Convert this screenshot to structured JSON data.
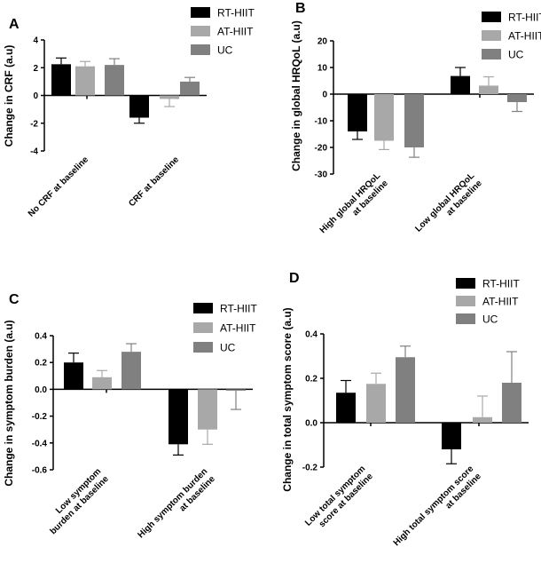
{
  "colors": {
    "RT-HIIT": "#000000",
    "AT-HIIT": "#a8a8a8",
    "UC": "#808080"
  },
  "chart_data": [
    {
      "panel": "A",
      "type": "bar",
      "ylabel": "Change in CRF (a.u)",
      "ylim": [
        -4,
        4
      ],
      "yticks": [
        -4,
        -2,
        0,
        2,
        4
      ],
      "ytick_labels": [
        "-4",
        "-2",
        "0",
        "2",
        "4"
      ],
      "categories": [
        "No CRF at baseline",
        "CRF at baseline"
      ],
      "category_lines": [
        [
          "No CRF at baseline"
        ],
        [
          "CRF at baseline"
        ]
      ],
      "legend": "top-right",
      "series": [
        {
          "name": "RT-HIIT",
          "values": [
            2.25,
            -1.6
          ],
          "errors": [
            0.45,
            0.4
          ]
        },
        {
          "name": "AT-HIIT",
          "values": [
            2.1,
            -0.25
          ],
          "errors": [
            0.35,
            0.55
          ]
        },
        {
          "name": "UC",
          "values": [
            2.2,
            1.0
          ],
          "errors": [
            0.45,
            0.3
          ]
        }
      ]
    },
    {
      "panel": "B",
      "type": "bar",
      "ylabel": "Change in global HRQoL (a.u)",
      "ylim": [
        -30,
        20
      ],
      "yticks": [
        -30,
        -20,
        -10,
        0,
        10,
        20
      ],
      "ytick_labels": [
        "-30",
        "-20",
        "-10",
        "0",
        "10",
        "20"
      ],
      "categories": [
        "High global HRQoL at baseline",
        "Low global HRQoL at baseline"
      ],
      "category_lines": [
        [
          "High global HRQoL",
          "at baseline"
        ],
        [
          "Low global HRQoL",
          "at baseline"
        ]
      ],
      "legend": "top-right",
      "series": [
        {
          "name": "RT-HIIT",
          "values": [
            -14,
            6.8
          ],
          "errors": [
            3.0,
            3.2
          ]
        },
        {
          "name": "AT-HIIT",
          "values": [
            -17.5,
            3.2
          ],
          "errors": [
            3.3,
            3.3
          ]
        },
        {
          "name": "UC",
          "values": [
            -20,
            -3
          ],
          "errors": [
            3.7,
            3.5
          ]
        }
      ]
    },
    {
      "panel": "C",
      "type": "bar",
      "ylabel": "Change in symptom burden (a.u)",
      "ylim": [
        -0.6,
        0.4
      ],
      "yticks": [
        -0.6,
        -0.4,
        -0.2,
        0.0,
        0.2,
        0.4
      ],
      "ytick_labels": [
        "-0.6",
        "-0.4",
        "-0.2",
        "0.0",
        "0.2",
        "0.4"
      ],
      "categories": [
        "Low symptom burden at baseline",
        "High symptom burden at baseline"
      ],
      "category_lines": [
        [
          "Low symptom",
          "burden at baseline"
        ],
        [
          "High symptom burden",
          "at baseline"
        ]
      ],
      "legend": "top-right",
      "series": [
        {
          "name": "RT-HIIT",
          "values": [
            0.2,
            -0.41
          ],
          "errors": [
            0.07,
            0.08
          ]
        },
        {
          "name": "AT-HIIT",
          "values": [
            0.09,
            -0.3
          ],
          "errors": [
            0.05,
            0.11
          ]
        },
        {
          "name": "UC",
          "values": [
            0.28,
            -0.01
          ],
          "errors": [
            0.06,
            0.14
          ]
        }
      ]
    },
    {
      "panel": "D",
      "type": "bar",
      "ylabel": "Change in total symptom score (a.u)",
      "ylim": [
        -0.2,
        0.4
      ],
      "yticks": [
        -0.2,
        0.0,
        0.2,
        0.4
      ],
      "ytick_labels": [
        "-0.2",
        "0.0",
        "0.2",
        "0.4"
      ],
      "categories": [
        "Low total symptom score at baseline",
        "High total symptom score at baseline"
      ],
      "category_lines": [
        [
          "Low total symptom",
          "score at baseline"
        ],
        [
          "High total symptom score",
          "at baseline"
        ]
      ],
      "legend": "top-left",
      "series": [
        {
          "name": "RT-HIIT",
          "values": [
            0.135,
            -0.12
          ],
          "errors": [
            0.055,
            0.065
          ]
        },
        {
          "name": "AT-HIIT",
          "values": [
            0.175,
            0.025
          ],
          "errors": [
            0.048,
            0.095
          ]
        },
        {
          "name": "UC",
          "values": [
            0.295,
            0.18
          ],
          "errors": [
            0.05,
            0.14
          ]
        }
      ]
    }
  ]
}
